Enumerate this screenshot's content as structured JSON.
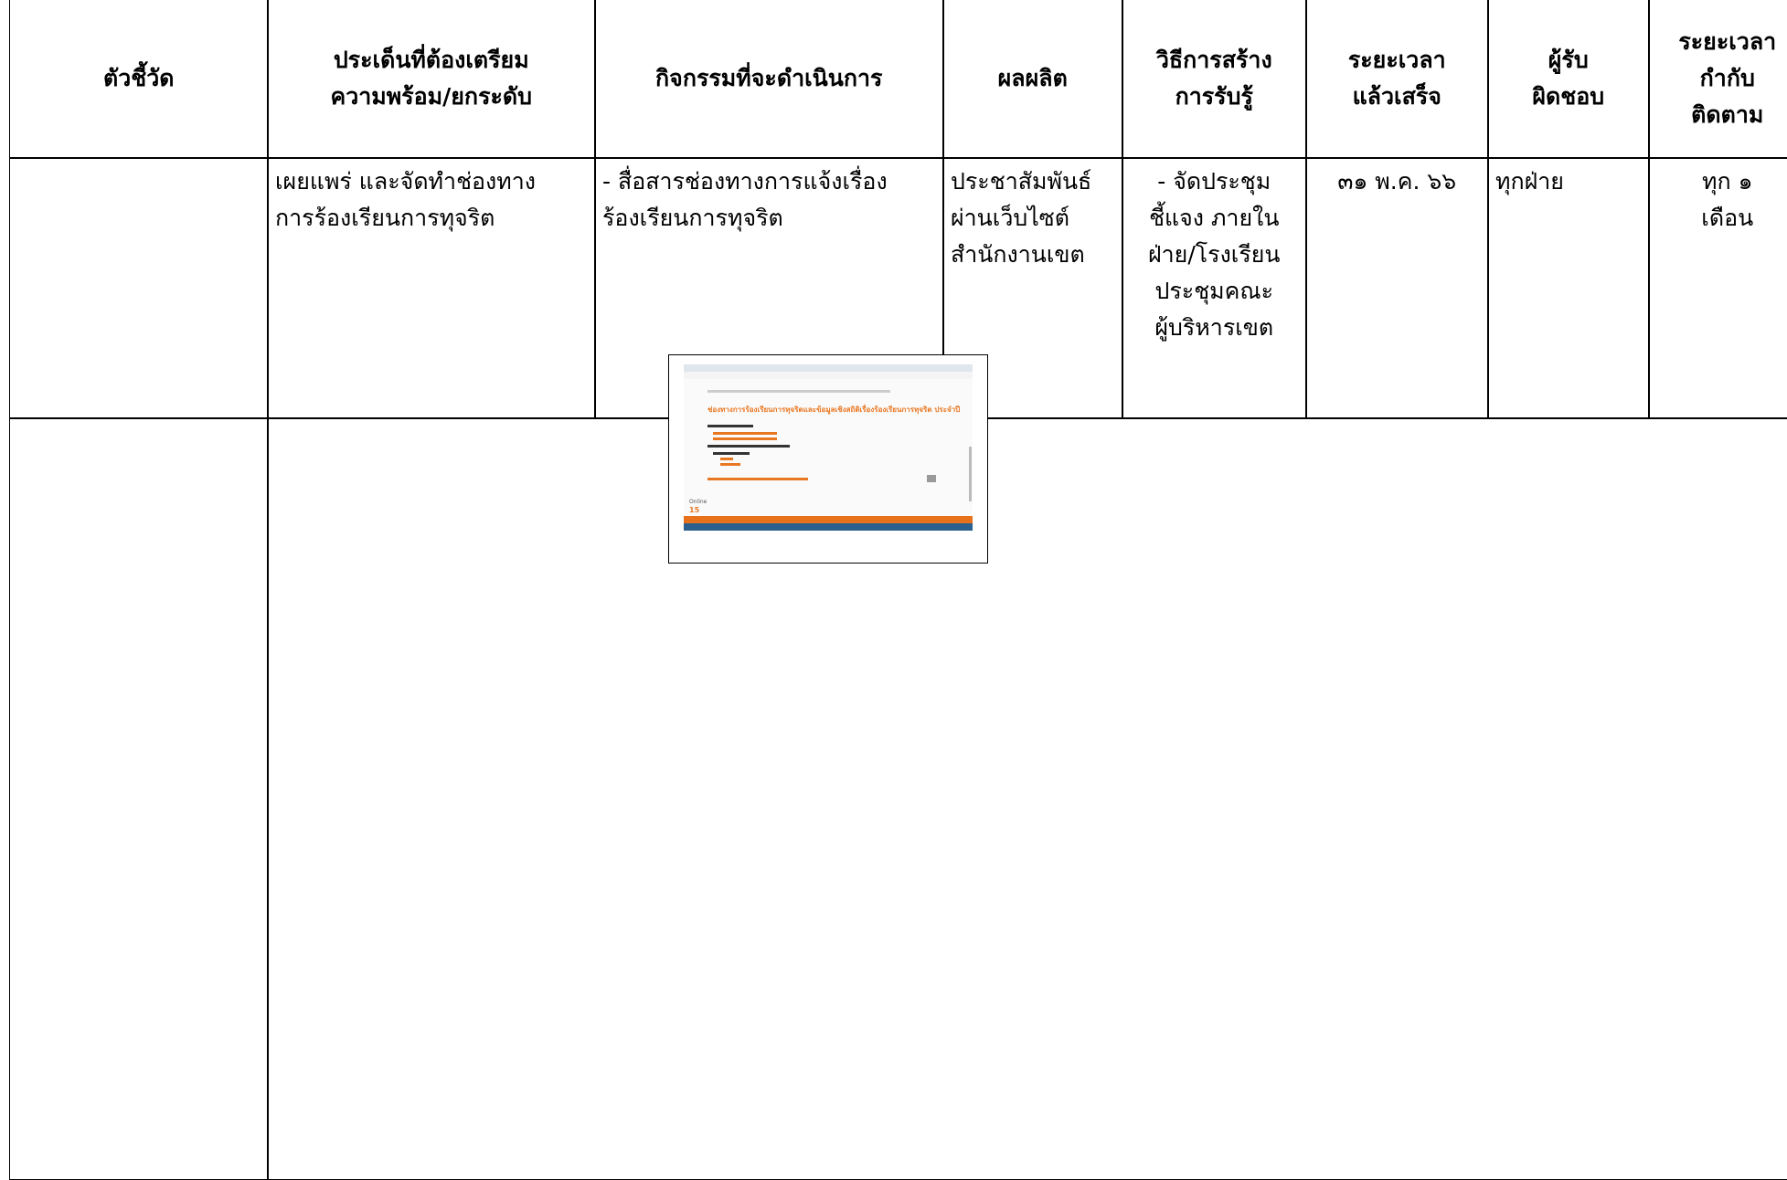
{
  "table": {
    "header": [
      [
        "ตัวชี้วัด"
      ],
      [
        "ประเด็นที่ต้องเตรียม",
        "ความพร้อม/ยกระดับ"
      ],
      [
        "กิจกรรมที่จะดำเนินการ"
      ],
      [
        "ผลผลิต"
      ],
      [
        "วิธีการสร้าง",
        "การรับรู้"
      ],
      [
        "ระยะเวลา",
        "แล้วเสร็จ"
      ],
      [
        "ผู้รับ",
        "ผิดชอบ"
      ],
      [
        "ระยะเวลา",
        "กำกับ",
        "ติดตาม"
      ]
    ],
    "rows": [
      [
        [],
        [
          "เผยแพร่ และจัดทำช่องทาง",
          "การร้องเรียนการทุจริต"
        ],
        [
          "- สื่อสารช่องทางการแจ้งเรื่อง",
          "ร้องเรียนการทุจริต"
        ],
        [
          "ประชาสัมพันธ์",
          "ผ่านเว็บไซต์",
          "สำนักงานเขต"
        ],
        [
          "- จัดประชุม",
          "ชี้แจง ภายใน",
          "ฝ่าย/โรงเรียน",
          "ประชุมคณะ",
          "ผู้บริหารเขต"
        ],
        [
          "๓๑ พ.ค. ๖๖"
        ],
        [
          "ทุกฝ่าย"
        ],
        [
          "ทุก ๑",
          "เดือน"
        ]
      ]
    ]
  },
  "screenshot": {
    "title": "ช่องทางการร้องเรียนการทุจริตและข้อมูลเชิงสถิติเรื่องร้องเรียนการทุจริต ประจำปี",
    "online_label": "Online",
    "online_count": "15"
  }
}
